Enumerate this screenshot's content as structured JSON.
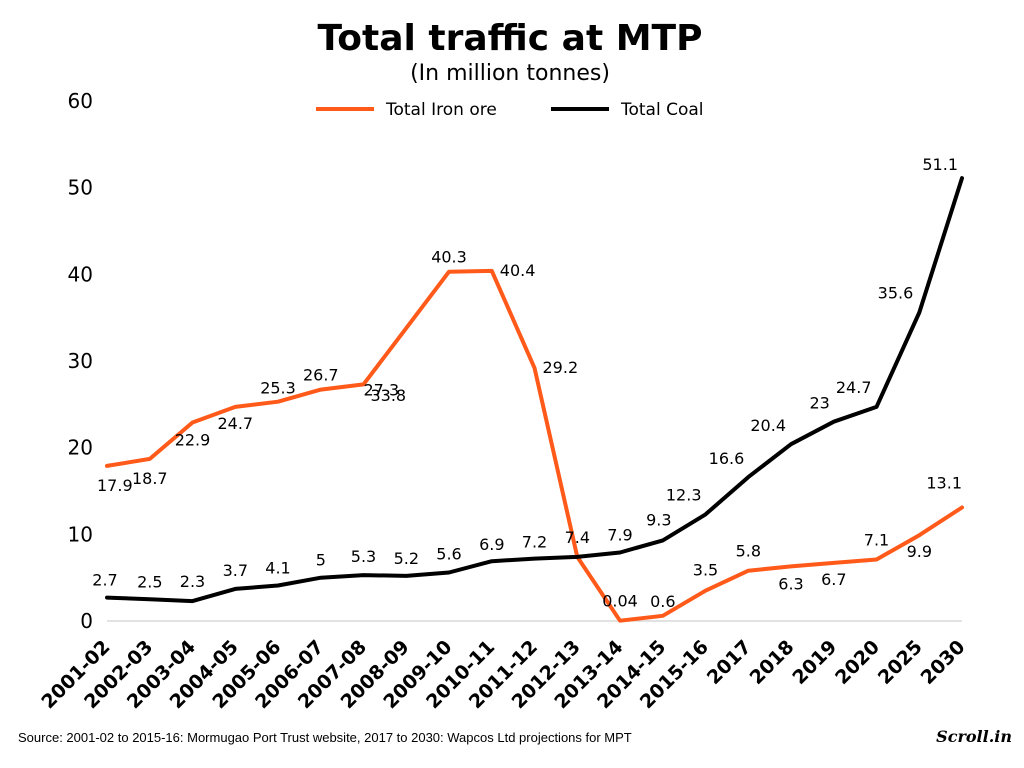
{
  "chart_data": {
    "type": "line",
    "title": "Total traffic at MTP",
    "subtitle": "(In million tonnes)",
    "categories": [
      "2001-02",
      "2002-03",
      "2003-04",
      "2004-05",
      "2005-06",
      "2006-07",
      "2007-08",
      "2008-09",
      "2009-10",
      "2010-11",
      "2011-12",
      "2012-13",
      "2013-14",
      "2014-15",
      "2015-16",
      "2017",
      "2018",
      "2019",
      "2020",
      "2025",
      "2030"
    ],
    "ylim": [
      0,
      60
    ],
    "yticks": [
      0,
      10,
      20,
      30,
      40,
      50,
      60
    ],
    "grid": false,
    "legend_position": "top",
    "series": [
      {
        "name": "Total Iron ore",
        "color": "#ff5a1a",
        "values": [
          17.9,
          18.7,
          22.9,
          24.7,
          25.3,
          26.7,
          27.3,
          33.8,
          40.3,
          40.4,
          29.2,
          7.4,
          0.04,
          0.6,
          3.5,
          5.8,
          6.3,
          6.7,
          7.1,
          9.9,
          13.1
        ]
      },
      {
        "name": "Total Coal",
        "color": "#000000",
        "values": [
          2.7,
          2.5,
          2.3,
          3.7,
          4.1,
          5,
          5.3,
          5.2,
          5.6,
          6.9,
          7.2,
          7.4,
          7.9,
          9.3,
          12.3,
          16.6,
          20.4,
          23,
          24.7,
          35.6,
          51.1
        ]
      }
    ],
    "data_labels": {
      "iron": [
        "17.9",
        "18.7",
        "22.9",
        "24.7",
        "25.3",
        "26.7",
        "27.3",
        "33.8",
        "40.3",
        "40.4",
        "29.2",
        "7.4",
        "0.04",
        "0.6",
        "3.5",
        "5.8",
        "6.3",
        "6.7",
        "7.1",
        "9.9",
        "13.1"
      ],
      "coal": [
        "2.7",
        "2.5",
        "2.3",
        "3.7",
        "4.1",
        "5",
        "5.3",
        "5.2",
        "5.6",
        "6.9",
        "7.2",
        "",
        "7.9",
        "9.3",
        "12.3",
        "16.6",
        "20.4",
        "23",
        "24.7",
        "35.6",
        "51.1"
      ]
    }
  },
  "source": "Source: 2001-02 to 2015-16: Mormugao Port Trust website, 2017 to 2030: Wapcos Ltd projections for MPT",
  "logo": "Scroll.in"
}
